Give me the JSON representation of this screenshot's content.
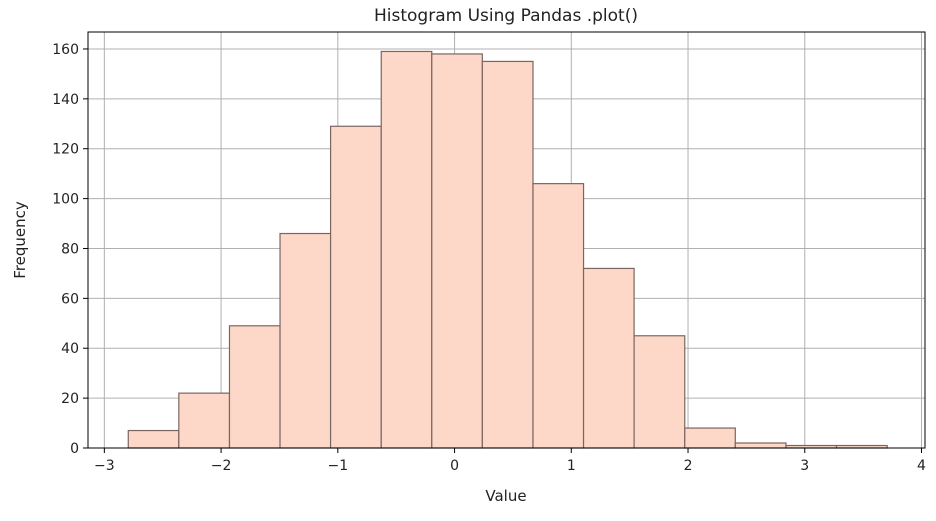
{
  "chart_data": {
    "type": "bar",
    "title": "Histogram Using Pandas .plot()",
    "xlabel": "Value",
    "ylabel": "Frequency",
    "bin_edges": [
      -2.795,
      -2.362,
      -1.928,
      -1.495,
      -1.062,
      -0.628,
      -0.195,
      0.238,
      0.672,
      1.105,
      1.538,
      1.972,
      2.405,
      2.839,
      3.272,
      3.706
    ],
    "values": [
      7,
      22,
      49,
      86,
      129,
      159,
      158,
      155,
      106,
      72,
      45,
      8,
      2,
      1,
      1
    ],
    "xlim": [
      -3.14,
      4.03
    ],
    "ylim": [
      0,
      166.8
    ],
    "xticks": [
      -3,
      -2,
      -1,
      0,
      1,
      2,
      3,
      4
    ],
    "xtick_labels": [
      "−3",
      "−2",
      "−1",
      "0",
      "1",
      "2",
      "3",
      "4"
    ],
    "yticks": [
      0,
      20,
      40,
      60,
      80,
      100,
      120,
      140,
      160
    ],
    "ytick_labels": [
      "0",
      "20",
      "40",
      "60",
      "80",
      "100",
      "120",
      "140",
      "160"
    ],
    "grid": true,
    "bar_color": "#FDD8C8",
    "edge_color": "#7a6660"
  }
}
